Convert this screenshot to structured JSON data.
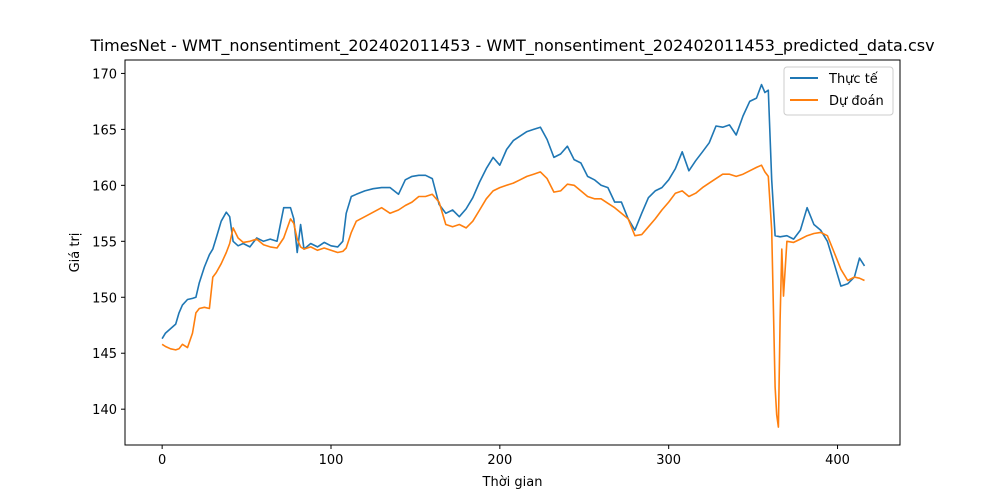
{
  "chart_data": {
    "type": "line",
    "title": "TimesNet - WMT_nonsentiment_202402011453 - WMT_nonsentiment_202402011453_predicted_data.csv",
    "xlabel": "Thời gian",
    "ylabel": "Giá trị",
    "xlim": [
      -22,
      437
    ],
    "ylim": [
      136.8,
      171.2
    ],
    "xticks": [
      0,
      100,
      200,
      300,
      400
    ],
    "yticks": [
      140,
      145,
      150,
      155,
      160,
      165,
      170
    ],
    "grid": false,
    "legend_position": "top-right",
    "series": [
      {
        "name": "Thực tế",
        "color": "#1f77b4",
        "points": [
          [
            0,
            146.3
          ],
          [
            2,
            146.8
          ],
          [
            5,
            147.2
          ],
          [
            8,
            147.6
          ],
          [
            10,
            148.6
          ],
          [
            12,
            149.3
          ],
          [
            15,
            149.8
          ],
          [
            18,
            149.9
          ],
          [
            20,
            150.0
          ],
          [
            22,
            151.3
          ],
          [
            25,
            152.7
          ],
          [
            28,
            153.8
          ],
          [
            30,
            154.3
          ],
          [
            32,
            155.3
          ],
          [
            35,
            156.8
          ],
          [
            38,
            157.6
          ],
          [
            40,
            157.2
          ],
          [
            42,
            155.0
          ],
          [
            45,
            154.6
          ],
          [
            48,
            154.8
          ],
          [
            52,
            154.5
          ],
          [
            56,
            155.3
          ],
          [
            60,
            155.0
          ],
          [
            64,
            155.2
          ],
          [
            68,
            155.0
          ],
          [
            72,
            158.0
          ],
          [
            76,
            158.0
          ],
          [
            78,
            157.0
          ],
          [
            80,
            154.0
          ],
          [
            82,
            156.5
          ],
          [
            84,
            154.3
          ],
          [
            88,
            154.8
          ],
          [
            92,
            154.5
          ],
          [
            96,
            154.9
          ],
          [
            100,
            154.6
          ],
          [
            104,
            154.5
          ],
          [
            107,
            155.0
          ],
          [
            109,
            157.5
          ],
          [
            112,
            159.0
          ],
          [
            115,
            159.2
          ],
          [
            120,
            159.5
          ],
          [
            125,
            159.7
          ],
          [
            130,
            159.8
          ],
          [
            135,
            159.8
          ],
          [
            140,
            159.2
          ],
          [
            144,
            160.5
          ],
          [
            148,
            160.8
          ],
          [
            152,
            160.9
          ],
          [
            156,
            160.9
          ],
          [
            160,
            160.6
          ],
          [
            164,
            158.3
          ],
          [
            168,
            157.5
          ],
          [
            172,
            157.8
          ],
          [
            176,
            157.2
          ],
          [
            180,
            157.9
          ],
          [
            184,
            158.9
          ],
          [
            188,
            160.3
          ],
          [
            192,
            161.5
          ],
          [
            196,
            162.5
          ],
          [
            200,
            161.8
          ],
          [
            204,
            163.2
          ],
          [
            208,
            164.0
          ],
          [
            212,
            164.4
          ],
          [
            216,
            164.8
          ],
          [
            220,
            165.0
          ],
          [
            224,
            165.2
          ],
          [
            228,
            164.1
          ],
          [
            232,
            162.5
          ],
          [
            236,
            162.8
          ],
          [
            240,
            163.5
          ],
          [
            244,
            162.3
          ],
          [
            248,
            162.0
          ],
          [
            252,
            160.8
          ],
          [
            256,
            160.5
          ],
          [
            260,
            160.0
          ],
          [
            264,
            159.8
          ],
          [
            268,
            158.5
          ],
          [
            272,
            158.5
          ],
          [
            276,
            157.0
          ],
          [
            280,
            156.0
          ],
          [
            284,
            157.5
          ],
          [
            288,
            158.9
          ],
          [
            292,
            159.5
          ],
          [
            296,
            159.8
          ],
          [
            300,
            160.5
          ],
          [
            304,
            161.5
          ],
          [
            308,
            163.0
          ],
          [
            312,
            161.3
          ],
          [
            316,
            162.2
          ],
          [
            320,
            163.0
          ],
          [
            324,
            163.8
          ],
          [
            328,
            165.3
          ],
          [
            332,
            165.2
          ],
          [
            336,
            165.4
          ],
          [
            340,
            164.5
          ],
          [
            344,
            166.2
          ],
          [
            348,
            167.5
          ],
          [
            352,
            167.8
          ],
          [
            355,
            169.0
          ],
          [
            357,
            168.3
          ],
          [
            359,
            168.5
          ],
          [
            361,
            160.5
          ],
          [
            363,
            155.5
          ],
          [
            366,
            155.4
          ],
          [
            370,
            155.5
          ],
          [
            374,
            155.2
          ],
          [
            378,
            156.0
          ],
          [
            382,
            158.0
          ],
          [
            386,
            156.5
          ],
          [
            390,
            156.0
          ],
          [
            394,
            155.0
          ],
          [
            398,
            153.0
          ],
          [
            402,
            151.0
          ],
          [
            406,
            151.2
          ],
          [
            410,
            151.8
          ],
          [
            413,
            153.5
          ],
          [
            416,
            152.8
          ]
        ]
      },
      {
        "name": "Dự đoán",
        "color": "#ff7f0e",
        "points": [
          [
            0,
            145.8
          ],
          [
            2,
            145.6
          ],
          [
            5,
            145.4
          ],
          [
            8,
            145.3
          ],
          [
            10,
            145.4
          ],
          [
            12,
            145.8
          ],
          [
            15,
            145.5
          ],
          [
            18,
            146.8
          ],
          [
            20,
            148.6
          ],
          [
            22,
            149.0
          ],
          [
            25,
            149.1
          ],
          [
            28,
            149.0
          ],
          [
            30,
            151.8
          ],
          [
            32,
            152.2
          ],
          [
            35,
            153.0
          ],
          [
            38,
            154.0
          ],
          [
            40,
            154.8
          ],
          [
            42,
            156.2
          ],
          [
            45,
            155.3
          ],
          [
            48,
            154.9
          ],
          [
            52,
            155.0
          ],
          [
            56,
            155.2
          ],
          [
            60,
            154.7
          ],
          [
            64,
            154.5
          ],
          [
            68,
            154.4
          ],
          [
            72,
            155.3
          ],
          [
            76,
            157.0
          ],
          [
            78,
            156.6
          ],
          [
            80,
            155.2
          ],
          [
            82,
            154.5
          ],
          [
            84,
            154.3
          ],
          [
            88,
            154.5
          ],
          [
            92,
            154.2
          ],
          [
            96,
            154.4
          ],
          [
            100,
            154.2
          ],
          [
            104,
            154.0
          ],
          [
            107,
            154.1
          ],
          [
            109,
            154.4
          ],
          [
            112,
            155.8
          ],
          [
            115,
            156.8
          ],
          [
            120,
            157.2
          ],
          [
            125,
            157.6
          ],
          [
            130,
            158.0
          ],
          [
            135,
            157.5
          ],
          [
            140,
            157.8
          ],
          [
            144,
            158.2
          ],
          [
            148,
            158.5
          ],
          [
            152,
            159.0
          ],
          [
            156,
            159.0
          ],
          [
            160,
            159.2
          ],
          [
            164,
            158.5
          ],
          [
            168,
            156.5
          ],
          [
            172,
            156.3
          ],
          [
            176,
            156.5
          ],
          [
            180,
            156.2
          ],
          [
            184,
            156.8
          ],
          [
            188,
            157.8
          ],
          [
            192,
            158.8
          ],
          [
            196,
            159.5
          ],
          [
            200,
            159.8
          ],
          [
            204,
            160.0
          ],
          [
            208,
            160.2
          ],
          [
            212,
            160.5
          ],
          [
            216,
            160.8
          ],
          [
            220,
            161.0
          ],
          [
            224,
            161.2
          ],
          [
            228,
            160.6
          ],
          [
            232,
            159.4
          ],
          [
            236,
            159.5
          ],
          [
            240,
            160.1
          ],
          [
            244,
            160.0
          ],
          [
            248,
            159.5
          ],
          [
            252,
            159.0
          ],
          [
            256,
            158.8
          ],
          [
            260,
            158.8
          ],
          [
            264,
            158.4
          ],
          [
            268,
            158.0
          ],
          [
            272,
            157.5
          ],
          [
            276,
            157.0
          ],
          [
            280,
            155.5
          ],
          [
            284,
            155.6
          ],
          [
            288,
            156.3
          ],
          [
            292,
            157.0
          ],
          [
            296,
            157.8
          ],
          [
            300,
            158.5
          ],
          [
            304,
            159.3
          ],
          [
            308,
            159.5
          ],
          [
            312,
            159.0
          ],
          [
            316,
            159.3
          ],
          [
            320,
            159.8
          ],
          [
            324,
            160.2
          ],
          [
            328,
            160.6
          ],
          [
            332,
            161.0
          ],
          [
            336,
            161.0
          ],
          [
            340,
            160.8
          ],
          [
            344,
            161.0
          ],
          [
            348,
            161.3
          ],
          [
            352,
            161.6
          ],
          [
            355,
            161.8
          ],
          [
            357,
            161.2
          ],
          [
            359,
            160.8
          ],
          [
            361,
            156.0
          ],
          [
            362,
            149.0
          ],
          [
            363,
            142.0
          ],
          [
            364,
            139.5
          ],
          [
            365,
            138.4
          ],
          [
            366,
            148.0
          ],
          [
            367,
            154.3
          ],
          [
            368,
            150.1
          ],
          [
            370,
            155.0
          ],
          [
            374,
            154.9
          ],
          [
            378,
            155.2
          ],
          [
            382,
            155.5
          ],
          [
            386,
            155.7
          ],
          [
            390,
            155.8
          ],
          [
            394,
            155.5
          ],
          [
            398,
            154.0
          ],
          [
            402,
            152.5
          ],
          [
            406,
            151.5
          ],
          [
            410,
            151.8
          ],
          [
            413,
            151.7
          ],
          [
            416,
            151.5
          ]
        ]
      }
    ]
  }
}
